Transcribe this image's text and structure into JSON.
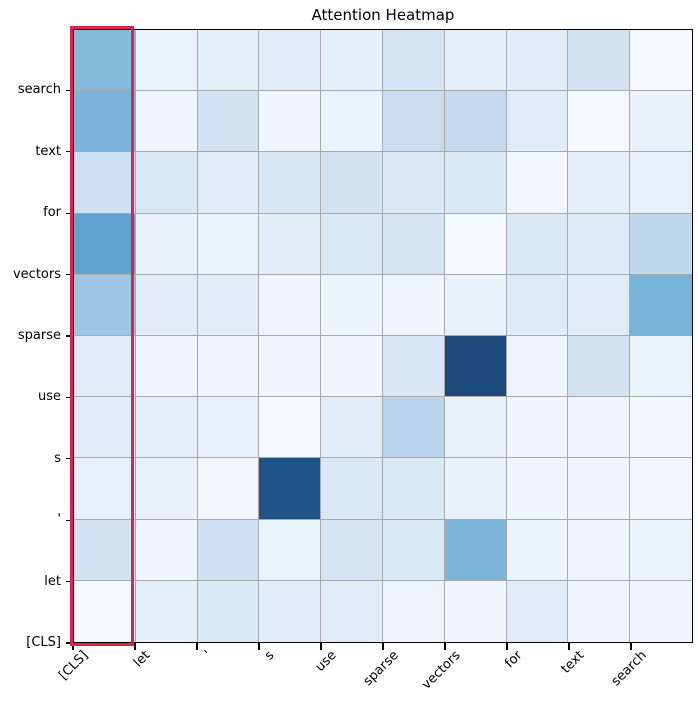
{
  "title": "Attention Heatmap",
  "colors": {
    "background": "#ffffff",
    "frame": "#000000",
    "grid_line": "#a9a9a9",
    "highlight_border": "#dc2350",
    "cmap_stops": [
      [
        0.0,
        "#f7fbff"
      ],
      [
        0.25,
        "#cadcf0"
      ],
      [
        0.5,
        "#6fafd7"
      ],
      [
        0.75,
        "#2e74b5"
      ],
      [
        1.0,
        "#12365f"
      ]
    ]
  },
  "chart_data": {
    "type": "heatmap",
    "title": "Attention Heatmap",
    "colormap": "Blues",
    "grid": "on",
    "value_range": [
      0,
      1
    ],
    "x_tokens_left_to_right": [
      "[CLS]",
      "let",
      "'",
      "s",
      "use",
      "sparse",
      "vectors",
      "for",
      "text",
      "search"
    ],
    "y_tokens_bottom_to_top": [
      "[CLS]",
      "let",
      "'",
      "s",
      "use",
      "sparse",
      "vectors",
      "for",
      "text",
      "search"
    ],
    "rows_top_to_bottom": [
      "search",
      "text",
      "for",
      "vectors",
      "sparse",
      "use",
      "s",
      "'",
      "let",
      "[CLS]"
    ],
    "matrix_top_to_bottom": [
      [
        0.44,
        0.07,
        0.1,
        0.13,
        0.1,
        0.19,
        0.1,
        0.12,
        0.2,
        0.02
      ],
      [
        0.47,
        0.04,
        0.2,
        0.04,
        0.07,
        0.25,
        0.26,
        0.13,
        0.02,
        0.08
      ],
      [
        0.22,
        0.16,
        0.12,
        0.18,
        0.2,
        0.15,
        0.16,
        0.03,
        0.1,
        0.09
      ],
      [
        0.55,
        0.08,
        0.07,
        0.11,
        0.17,
        0.19,
        0.02,
        0.16,
        0.14,
        0.28
      ],
      [
        0.37,
        0.12,
        0.12,
        0.05,
        0.06,
        0.04,
        0.08,
        0.14,
        0.13,
        0.48
      ],
      [
        0.13,
        0.05,
        0.05,
        0.05,
        0.04,
        0.18,
        0.92,
        0.05,
        0.2,
        0.07
      ],
      [
        0.12,
        0.1,
        0.09,
        0.02,
        0.11,
        0.3,
        0.08,
        0.04,
        0.05,
        0.03
      ],
      [
        0.09,
        0.08,
        0.03,
        0.88,
        0.16,
        0.16,
        0.08,
        0.04,
        0.04,
        0.03
      ],
      [
        0.2,
        0.04,
        0.22,
        0.07,
        0.19,
        0.16,
        0.46,
        0.06,
        0.05,
        0.07
      ],
      [
        0.02,
        0.1,
        0.17,
        0.12,
        0.13,
        0.05,
        0.04,
        0.13,
        0.05,
        0.04
      ]
    ],
    "highlighted_column": "[CLS]"
  }
}
